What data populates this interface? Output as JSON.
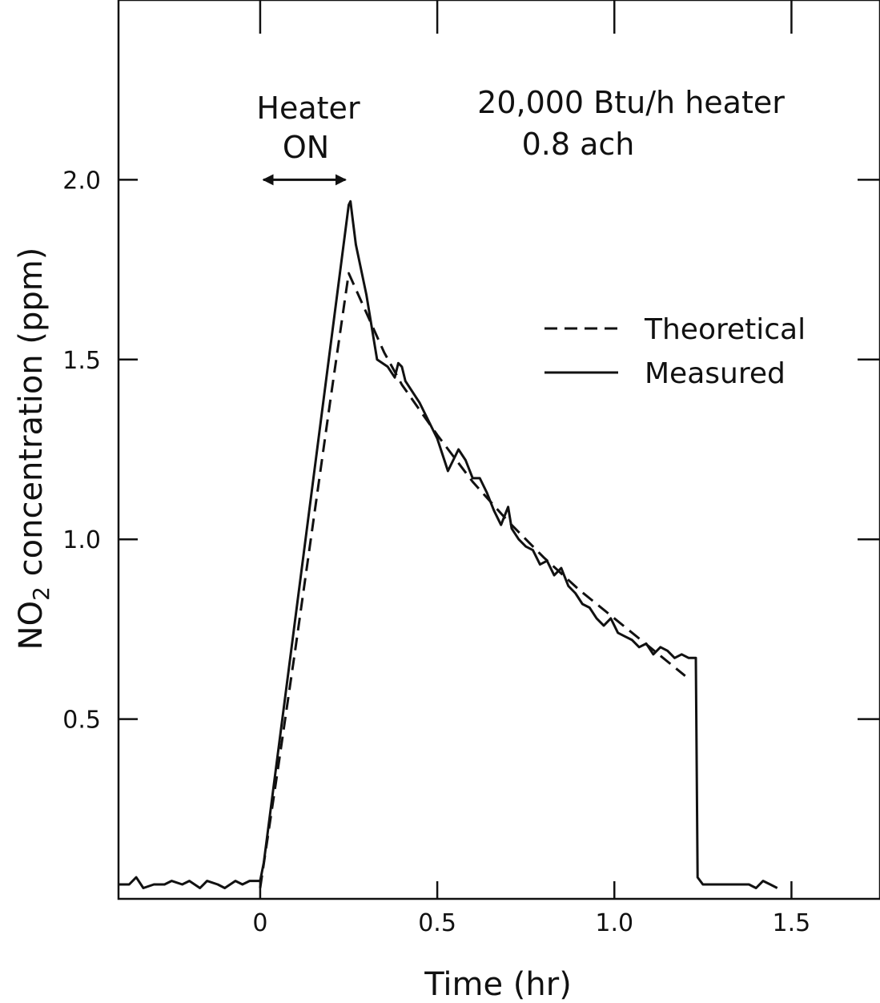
{
  "chart_data": {
    "type": "line",
    "xlabel": "Time (hr)",
    "ylabel": "NO2 concentration (ppm)",
    "ylabel_parts": {
      "species_main": "NO",
      "species_sub": "2",
      "rest": "concentration (ppm)"
    },
    "xlim": [
      -0.4,
      1.75
    ],
    "ylim": [
      0.0,
      2.5
    ],
    "x_ticks": [
      0,
      0.5,
      1.0,
      1.5
    ],
    "x_tick_labels": [
      "0",
      "0.5",
      "1.0",
      "1.5"
    ],
    "y_ticks": [
      0.5,
      1.0,
      1.5,
      2.0
    ],
    "y_tick_labels": [
      "0.5",
      "1.0",
      "1.5",
      "2.0"
    ],
    "grid": false,
    "legend_position": "right",
    "annotations": {
      "heater_line1": "Heater",
      "heater_line2": "ON",
      "heater_on_interval": [
        0.0,
        0.25
      ],
      "info_line1": "20,000 Btu/h heater",
      "info_line2": "0.8 ach"
    },
    "colors": {
      "line": "#111111"
    },
    "series": [
      {
        "name": "Theoretical",
        "style": "dashed",
        "x": [
          0.0,
          0.05,
          0.1,
          0.15,
          0.2,
          0.25,
          0.3,
          0.35,
          0.4,
          0.5,
          0.6,
          0.7,
          0.8,
          0.9,
          1.0,
          1.1,
          1.2
        ],
        "y": [
          0.03,
          0.36,
          0.7,
          1.05,
          1.4,
          1.74,
          1.63,
          1.52,
          1.43,
          1.29,
          1.16,
          1.05,
          0.95,
          0.86,
          0.78,
          0.7,
          0.62
        ]
      },
      {
        "name": "Measured",
        "style": "solid",
        "x": [
          -0.4,
          -0.37,
          -0.35,
          -0.33,
          -0.3,
          -0.27,
          -0.25,
          -0.22,
          -0.2,
          -0.17,
          -0.15,
          -0.12,
          -0.1,
          -0.07,
          -0.05,
          -0.03,
          0.0,
          0.01,
          0.25,
          0.255,
          0.26,
          0.27,
          0.3,
          0.33,
          0.36,
          0.38,
          0.39,
          0.4,
          0.41,
          0.45,
          0.5,
          0.53,
          0.56,
          0.58,
          0.6,
          0.62,
          0.64,
          0.66,
          0.68,
          0.7,
          0.71,
          0.73,
          0.75,
          0.77,
          0.79,
          0.81,
          0.83,
          0.85,
          0.87,
          0.89,
          0.91,
          0.93,
          0.95,
          0.97,
          0.99,
          1.01,
          1.03,
          1.05,
          1.07,
          1.09,
          1.11,
          1.13,
          1.15,
          1.17,
          1.19,
          1.21,
          1.23,
          1.235,
          1.25,
          1.3,
          1.35,
          1.38,
          1.4,
          1.42,
          1.44,
          1.46
        ],
        "y": [
          0.04,
          0.04,
          0.06,
          0.03,
          0.04,
          0.04,
          0.05,
          0.04,
          0.05,
          0.03,
          0.05,
          0.04,
          0.03,
          0.05,
          0.04,
          0.05,
          0.05,
          0.1,
          1.93,
          1.94,
          1.9,
          1.82,
          1.68,
          1.5,
          1.48,
          1.45,
          1.49,
          1.48,
          1.44,
          1.38,
          1.28,
          1.19,
          1.25,
          1.22,
          1.17,
          1.17,
          1.13,
          1.08,
          1.04,
          1.09,
          1.03,
          1.0,
          0.98,
          0.97,
          0.93,
          0.94,
          0.9,
          0.92,
          0.87,
          0.85,
          0.82,
          0.81,
          0.78,
          0.76,
          0.78,
          0.74,
          0.73,
          0.72,
          0.7,
          0.71,
          0.68,
          0.7,
          0.69,
          0.67,
          0.68,
          0.67,
          0.67,
          0.06,
          0.04,
          0.04,
          0.04,
          0.04,
          0.03,
          0.05,
          0.04,
          0.03
        ]
      }
    ]
  }
}
